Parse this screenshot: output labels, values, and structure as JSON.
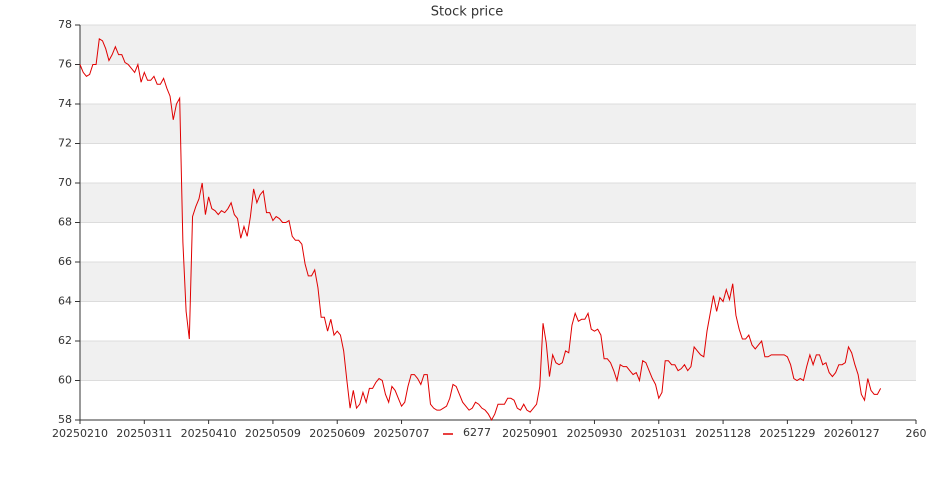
{
  "chart_data": {
    "type": "line",
    "title": "Stock price",
    "series": [
      {
        "name": "6277",
        "color": "#e00000",
        "values": [
          76.0,
          75.6,
          75.4,
          75.5,
          76.0,
          76.0,
          77.3,
          77.2,
          76.8,
          76.2,
          76.5,
          76.9,
          76.5,
          76.5,
          76.1,
          76.0,
          75.8,
          75.6,
          76.0,
          75.1,
          75.6,
          75.2,
          75.2,
          75.4,
          75.0,
          75.0,
          75.3,
          74.8,
          74.4,
          73.2,
          74.0,
          74.3,
          67.0,
          63.5,
          62.1,
          68.3,
          68.8,
          69.2,
          70.0,
          68.4,
          69.3,
          68.7,
          68.6,
          68.4,
          68.6,
          68.5,
          68.7,
          69.0,
          68.4,
          68.2,
          67.2,
          67.8,
          67.3,
          68.3,
          69.7,
          69.0,
          69.4,
          69.6,
          68.5,
          68.5,
          68.1,
          68.3,
          68.2,
          68.0,
          68.0,
          68.1,
          67.3,
          67.1,
          67.1,
          66.9,
          65.9,
          65.3,
          65.3,
          65.6,
          64.7,
          63.2,
          63.2,
          62.5,
          63.1,
          62.3,
          62.5,
          62.3,
          61.5,
          60.0,
          58.6,
          59.5,
          58.6,
          58.8,
          59.4,
          58.9,
          59.6,
          59.6,
          59.9,
          60.1,
          60.0,
          59.3,
          58.9,
          59.7,
          59.5,
          59.1,
          58.7,
          58.9,
          59.7,
          60.3,
          60.3,
          60.1,
          59.8,
          60.3,
          60.3,
          58.8,
          58.6,
          58.5,
          58.5,
          58.6,
          58.7,
          59.1,
          59.8,
          59.7,
          59.3,
          58.9,
          58.7,
          58.5,
          58.6,
          58.9,
          58.8,
          58.6,
          58.5,
          58.3,
          58.0,
          58.3,
          58.8,
          58.8,
          58.8,
          59.1,
          59.1,
          59.0,
          58.6,
          58.5,
          58.8,
          58.5,
          58.4,
          58.6,
          58.8,
          59.7,
          62.9,
          61.9,
          60.2,
          61.3,
          60.9,
          60.8,
          60.9,
          61.5,
          61.4,
          62.8,
          63.4,
          63.0,
          63.1,
          63.1,
          63.4,
          62.6,
          62.5,
          62.6,
          62.3,
          61.1,
          61.1,
          60.9,
          60.5,
          60.0,
          60.8,
          60.7,
          60.7,
          60.5,
          60.3,
          60.4,
          60.0,
          61.0,
          60.9,
          60.5,
          60.1,
          59.8,
          59.1,
          59.4,
          61.0,
          61.0,
          60.8,
          60.8,
          60.5,
          60.6,
          60.8,
          60.5,
          60.7,
          61.7,
          61.5,
          61.3,
          61.2,
          62.5,
          63.4,
          64.3,
          63.5,
          64.2,
          64.0,
          64.6,
          64.1,
          64.9,
          63.3,
          62.6,
          62.1,
          62.1,
          62.3,
          61.8,
          61.6,
          61.8,
          62.0,
          61.2,
          61.2,
          61.3,
          61.3,
          61.3,
          61.3,
          61.3,
          61.2,
          60.8,
          60.1,
          60.0,
          60.1,
          60.0,
          60.7,
          61.3,
          60.8,
          61.3,
          61.3,
          60.8,
          60.9,
          60.4,
          60.2,
          60.4,
          60.8,
          60.8,
          60.9,
          61.7,
          61.4,
          60.8,
          60.3,
          59.3,
          59.0,
          60.1,
          59.5,
          59.3,
          59.3,
          59.6
        ]
      }
    ],
    "xlim": [
      0,
      260
    ],
    "xticks": [
      {
        "value": 0,
        "label": "20250210"
      },
      {
        "value": 20,
        "label": "20250311"
      },
      {
        "value": 40,
        "label": "20250410"
      },
      {
        "value": 60,
        "label": "20250509"
      },
      {
        "value": 80,
        "label": "20250609"
      },
      {
        "value": 100,
        "label": "20250707"
      },
      {
        "value": 140,
        "label": "20250901"
      },
      {
        "value": 160,
        "label": "20250930"
      },
      {
        "value": 180,
        "label": "20251031"
      },
      {
        "value": 200,
        "label": "20251128"
      },
      {
        "value": 220,
        "label": "20251229"
      },
      {
        "value": 240,
        "label": "20260127"
      },
      260
    ],
    "ylim": [
      58,
      78
    ],
    "yticks": [
      58,
      60,
      62,
      64,
      66,
      68,
      70,
      72,
      74,
      76,
      78
    ],
    "grid": true,
    "band_color": "#f0f0f0",
    "legend": "bottom"
  }
}
